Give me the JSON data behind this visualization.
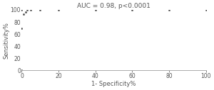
{
  "title": "AUC = 0.98, p<0.0001",
  "xlabel": "1- Specificity%",
  "ylabel": "Sensitivity%",
  "roc_x": [
    0,
    0,
    0,
    1,
    2,
    3,
    5,
    10,
    20,
    40,
    60,
    80,
    100
  ],
  "roc_y": [
    0,
    70,
    100,
    93,
    97,
    100,
    100,
    100,
    100,
    100,
    100,
    100,
    100
  ],
  "xlim": [
    0,
    100
  ],
  "ylim": [
    0,
    100
  ],
  "xticks": [
    0,
    20,
    40,
    60,
    80,
    100
  ],
  "yticks": [
    0,
    20,
    40,
    60,
    80,
    100
  ],
  "line_color": "#333333",
  "line_width": 1.2,
  "title_fontsize": 6.5,
  "label_fontsize": 6.0,
  "tick_fontsize": 5.5,
  "bg_color": "#ffffff",
  "spine_color": "#aaaaaa"
}
